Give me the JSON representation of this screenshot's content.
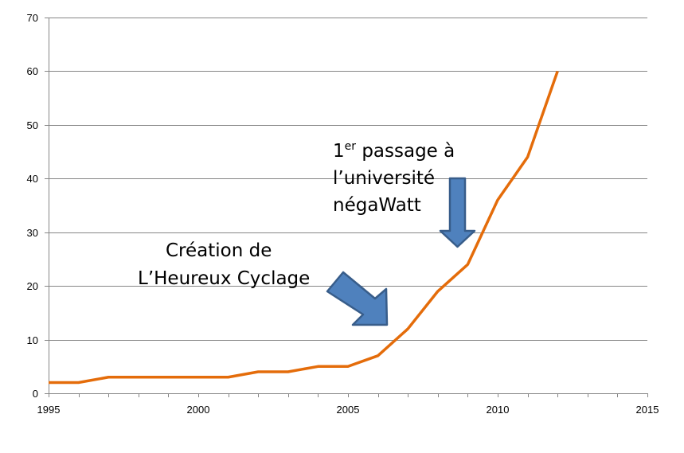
{
  "chart_data": {
    "type": "line",
    "title": "",
    "xlabel": "",
    "ylabel": "",
    "xlim": [
      1995,
      2015
    ],
    "ylim": [
      0,
      70
    ],
    "x_ticks": [
      "1995",
      "2000",
      "2005",
      "2010",
      "2015"
    ],
    "y_ticks": [
      "0",
      "10",
      "20",
      "30",
      "40",
      "50",
      "60",
      "70"
    ],
    "grid": true,
    "legend": "none",
    "series": [
      {
        "color": "#E46C0A",
        "x": [
          1995,
          1996,
          1997,
          1998,
          1999,
          2000,
          2001,
          2002,
          2003,
          2004,
          2005,
          2006,
          2007,
          2008,
          2009,
          2010,
          2011,
          2012
        ],
        "y": [
          2,
          2,
          3,
          3,
          3,
          3,
          3,
          4,
          4,
          5,
          5,
          7,
          12,
          19,
          24,
          36,
          44,
          60
        ]
      }
    ],
    "annotations": [
      {
        "id": "universite",
        "lines": [
          "1",
          "l’université",
          "négaWatt"
        ],
        "superscript": "er",
        "first_line_rest": " passage à",
        "points_to_year": 2009,
        "arrow_color": "#4F81BD"
      },
      {
        "id": "heureux",
        "lines": [
          "Création de",
          "L’Heureux Cyclage"
        ],
        "points_to_year": 2007,
        "arrow_color": "#4F81BD"
      }
    ]
  }
}
